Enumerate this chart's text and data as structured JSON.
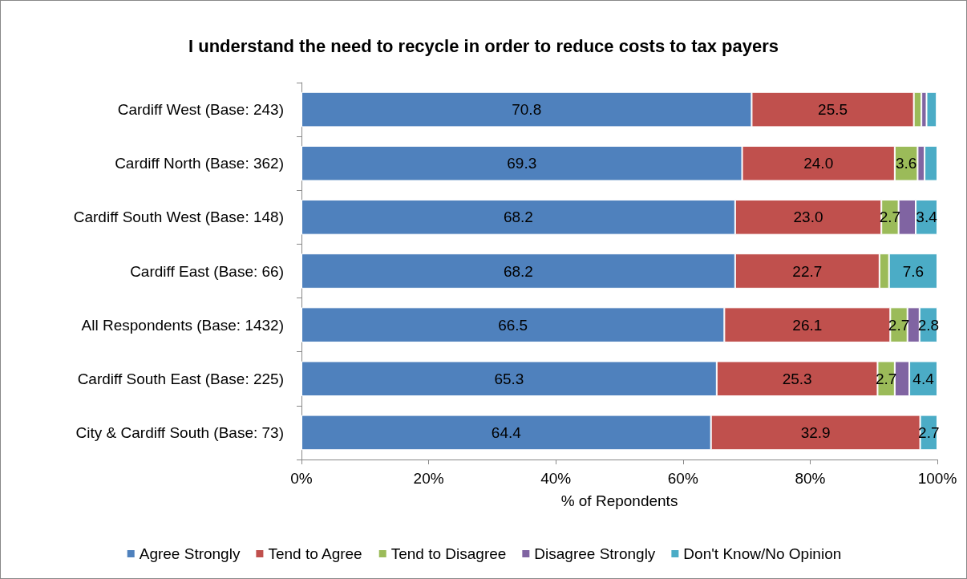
{
  "chart_data": {
    "type": "bar",
    "orientation": "horizontal",
    "stacked": true,
    "title": "I understand the need to recycle in order to reduce costs to tax payers",
    "xlabel": "% of Repondents",
    "categories": [
      "Cardiff West (Base: 243)",
      "Cardiff North (Base: 362)",
      "Cardiff South West (Base: 148)",
      "Cardiff East (Base: 66)",
      "All Respondents (Base: 1432)",
      "Cardiff South East (Base: 225)",
      "City & Cardiff South (Base: 73)"
    ],
    "series": [
      {
        "name": "Agree Strongly",
        "color": "#4f81bd",
        "values": [
          70.8,
          69.3,
          68.2,
          68.2,
          66.5,
          65.3,
          64.4
        ],
        "value_labels": [
          "70.8",
          "69.3",
          "68.2",
          "68.2",
          "66.5",
          "65.3",
          "64.4"
        ]
      },
      {
        "name": "Tend to Agree",
        "color": "#c0504d",
        "values": [
          25.5,
          24.0,
          23.0,
          22.7,
          26.1,
          25.3,
          32.9
        ],
        "value_labels": [
          "25.5",
          "24.0",
          "23.0",
          "22.7",
          "26.1",
          "25.3",
          "32.9"
        ]
      },
      {
        "name": "Tend to Disagree",
        "color": "#9bbb59",
        "values": [
          1.2,
          3.6,
          2.7,
          1.5,
          2.7,
          2.7,
          null
        ],
        "value_labels": [
          null,
          "3.6",
          "2.7",
          null,
          "2.7",
          "2.7",
          null
        ]
      },
      {
        "name": "Disagree Strongly",
        "color": "#8064a2",
        "values": [
          0.8,
          1.1,
          2.7,
          null,
          1.9,
          2.3,
          null
        ],
        "value_labels": [
          null,
          null,
          null,
          null,
          null,
          null,
          null
        ]
      },
      {
        "name": "Don't Know/No Opinion",
        "color": "#4bacc6",
        "values": [
          1.6,
          2.0,
          3.4,
          7.6,
          2.8,
          4.4,
          2.7
        ],
        "value_labels": [
          null,
          null,
          "3.4",
          "7.6",
          "2.8",
          "4.4",
          "2.7"
        ]
      }
    ],
    "xlim": [
      0,
      100
    ],
    "xticks": [
      {
        "value": 0,
        "label": "0%"
      },
      {
        "value": 20,
        "label": "20%"
      },
      {
        "value": 40,
        "label": "40%"
      },
      {
        "value": 60,
        "label": "60%"
      },
      {
        "value": 80,
        "label": "80%"
      },
      {
        "value": 100,
        "label": "100%"
      }
    ],
    "grid": false,
    "legend": "bottom"
  }
}
